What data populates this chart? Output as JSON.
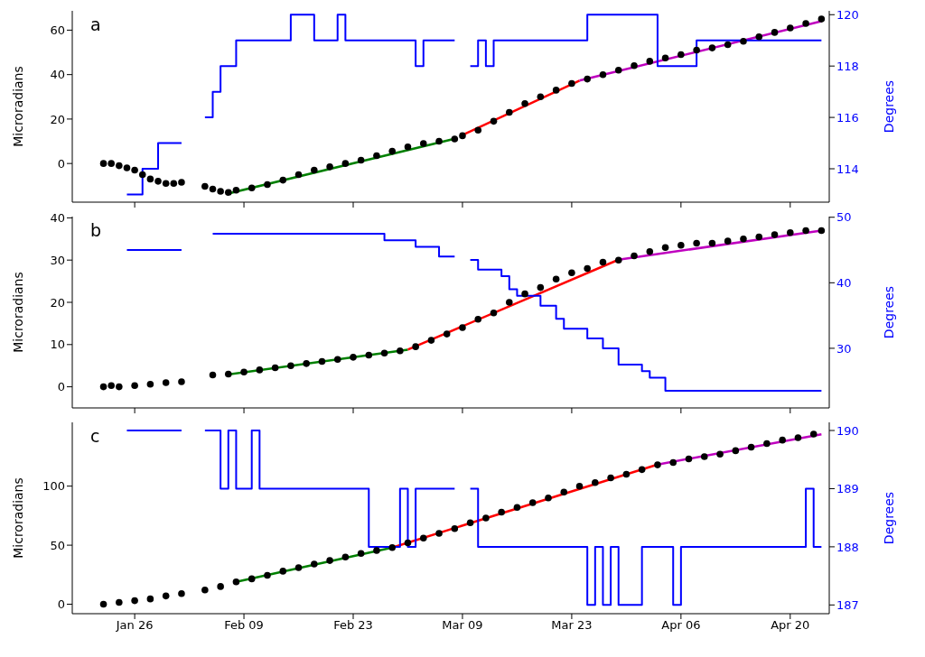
{
  "chart_data": [
    {
      "type": "scatter",
      "title": "a",
      "ylabel": "Microradians",
      "y2label": "Degrees",
      "xlim": [
        "--01-18",
        "--04-25"
      ],
      "xticks": [
        {
          "value": "--01-26",
          "label": "Jan 26"
        },
        {
          "value": "--02-09",
          "label": "Feb 09"
        },
        {
          "value": "--02-23",
          "label": "Feb 23"
        },
        {
          "value": "--03-09",
          "label": "Mar 09"
        },
        {
          "value": "--03-23",
          "label": "Mar 23"
        },
        {
          "value": "--04-06",
          "label": "Apr 06"
        },
        {
          "value": "--04-20",
          "label": "Apr 20"
        }
      ],
      "ylim": [
        -17.4,
        68.7
      ],
      "yticks": [
        0,
        20,
        40,
        60
      ],
      "y2lim": [
        112.7,
        120.15
      ],
      "y2ticks": [
        114,
        116,
        118,
        120
      ],
      "tick_labels": "y",
      "line_style": "solid",
      "series": [
        {
          "marker": "circle",
          "color": "#000000",
          "x": [
            "--01-22",
            "--01-23",
            "--01-24",
            "--01-25",
            "--01-26",
            "--01-27",
            "--01-28",
            "--01-29",
            "--01-30",
            "--01-31",
            "--02-01",
            "--02-04",
            "--02-05",
            "--02-06",
            "--02-07",
            "--02-08",
            "--02-10",
            "--02-12",
            "--02-14",
            "--02-16",
            "--02-18",
            "--02-20",
            "--02-22",
            "--02-24",
            "--02-26",
            "--02-28",
            "--03-02",
            "--03-04",
            "--03-06",
            "--03-08",
            "--03-09",
            "--03-11",
            "--03-13",
            "--03-15",
            "--03-17",
            "--03-19",
            "--03-21",
            "--03-23",
            "--03-25",
            "--03-27",
            "--03-29",
            "--03-31",
            "--04-02",
            "--04-04",
            "--04-06",
            "--04-08",
            "--04-10",
            "--04-12",
            "--04-14",
            "--04-16",
            "--04-18",
            "--04-20",
            "--04-22",
            "--04-24"
          ],
          "values": [
            0,
            0,
            -1,
            -2,
            -3,
            -5,
            -7,
            -8,
            -9,
            -9,
            -8.5,
            -10.3,
            -11.5,
            -12.5,
            -13,
            -12,
            -11,
            -9.5,
            -7.5,
            -5,
            -3,
            -1.5,
            0,
            1.5,
            3.5,
            5.5,
            7.5,
            9,
            10,
            11,
            12.5,
            15,
            19,
            23,
            27,
            30,
            33,
            36,
            38,
            40,
            42,
            44,
            46,
            47.5,
            49,
            51,
            52,
            53.5,
            55,
            57,
            59,
            61,
            63,
            65
          ]
        },
        {
          "type": "line",
          "color": "#008000",
          "x": [
            "--02-07",
            "--03-08"
          ],
          "values": [
            -13.5,
            11.1
          ]
        },
        {
          "type": "line",
          "color": "#ff0000",
          "x": [
            "--03-09",
            "--03-24"
          ],
          "values": [
            12.8,
            37.3
          ]
        },
        {
          "type": "line",
          "color": "#bf00bf",
          "x": [
            "--03-24",
            "--04-24"
          ],
          "values": [
            37.3,
            64
          ]
        },
        {
          "type": "step",
          "axis": "y2",
          "color": "#0000ff",
          "x": [
            "--01-25",
            "--01-27",
            "--01-29",
            "--02-01",
            "--02-02",
            "--02-04",
            "--02-05",
            "--02-06",
            "--02-08",
            "--02-15",
            "--02-18",
            "--02-21",
            "--02-22",
            "--03-03",
            "--03-04",
            "--03-08",
            "--03-09",
            "--03-10",
            "--03-11",
            "--03-12",
            "--03-13",
            "--03-25",
            "--04-03",
            "--04-08",
            "--04-24"
          ],
          "values": [
            113,
            114,
            115,
            115,
            null,
            116,
            117,
            118,
            119,
            120,
            119,
            120,
            119,
            118,
            119,
            119,
            null,
            118,
            119,
            118,
            119,
            120,
            118,
            119,
            119
          ]
        }
      ]
    },
    {
      "type": "scatter",
      "title": "b",
      "ylabel": "Microradians",
      "y2label": "Degrees",
      "xlim": [
        "--01-18",
        "--04-25"
      ],
      "xticks": [
        {
          "value": "--01-26",
          "label": "Jan 26"
        },
        {
          "value": "--02-09",
          "label": "Feb 09"
        },
        {
          "value": "--02-23",
          "label": "Feb 23"
        },
        {
          "value": "--03-09",
          "label": "Mar 09"
        },
        {
          "value": "--03-23",
          "label": "Mar 23"
        },
        {
          "value": "--04-06",
          "label": "Apr 06"
        },
        {
          "value": "--04-20",
          "label": "Apr 20"
        }
      ],
      "ylim": [
        -5,
        40.3
      ],
      "yticks": [
        0,
        10,
        20,
        30,
        40
      ],
      "y2lim": [
        20.9,
        50.1
      ],
      "y2ticks": [
        30,
        40,
        50
      ],
      "tick_labels": "y",
      "line_style": "solid",
      "series": [
        {
          "marker": "circle",
          "color": "#000000",
          "x": [
            "--01-22",
            "--01-23",
            "--01-24",
            "--01-26",
            "--01-28",
            "--01-30",
            "--02-01",
            "--02-05",
            "--02-07",
            "--02-09",
            "--02-11",
            "--02-13",
            "--02-15",
            "--02-17",
            "--02-19",
            "--02-21",
            "--02-23",
            "--02-25",
            "--02-27",
            "--03-01",
            "--03-03",
            "--03-05",
            "--03-07",
            "--03-09",
            "--03-11",
            "--03-13",
            "--03-15",
            "--03-17",
            "--03-19",
            "--03-21",
            "--03-23",
            "--03-25",
            "--03-27",
            "--03-29",
            "--03-31",
            "--04-02",
            "--04-04",
            "--04-06",
            "--04-08",
            "--04-10",
            "--04-12",
            "--04-14",
            "--04-16",
            "--04-18",
            "--04-20",
            "--04-22",
            "--04-24"
          ],
          "values": [
            0,
            0.3,
            0,
            0.3,
            0.6,
            1,
            1.2,
            2.8,
            3,
            3.5,
            4,
            4.5,
            5,
            5.5,
            6,
            6.5,
            7,
            7.5,
            8,
            8.5,
            9.5,
            11,
            12.5,
            14,
            16,
            17.5,
            20,
            22,
            23.5,
            25.5,
            27,
            28,
            29.5,
            30,
            31,
            32,
            33,
            33.5,
            34,
            34,
            34.5,
            35,
            35.5,
            36,
            36.5,
            37,
            37
          ]
        },
        {
          "type": "line",
          "color": "#008000",
          "x": [
            "--02-07",
            "--03-02"
          ],
          "values": [
            2.9,
            8.8
          ]
        },
        {
          "type": "line",
          "color": "#ff0000",
          "x": [
            "--03-02",
            "--03-29"
          ],
          "values": [
            8.8,
            30.1
          ]
        },
        {
          "type": "line",
          "color": "#bf00bf",
          "x": [
            "--03-29",
            "--04-24"
          ],
          "values": [
            30.1,
            37
          ]
        },
        {
          "type": "step",
          "axis": "y2",
          "color": "#0000ff",
          "x": [
            "--01-25",
            "--02-01",
            "--02-02",
            "--02-05",
            "--02-27",
            "--03-03",
            "--03-06",
            "--03-08",
            "--03-09",
            "--03-10",
            "--03-11",
            "--03-14",
            "--03-15",
            "--03-16",
            "--03-19",
            "--03-21",
            "--03-22",
            "--03-25",
            "--03-27",
            "--03-29",
            "--04-01",
            "--04-02",
            "--04-04",
            "--04-24"
          ],
          "values": [
            45,
            45,
            null,
            47.5,
            46.5,
            45.5,
            44,
            44,
            null,
            43.5,
            42,
            41,
            39,
            38,
            36.5,
            34.5,
            33,
            31.5,
            30,
            27.5,
            26.5,
            25.5,
            23.5,
            23.5
          ]
        }
      ]
    },
    {
      "type": "scatter",
      "title": "c",
      "ylabel": "Microradians",
      "y2label": "Degrees",
      "xlim": [
        "--01-18",
        "--04-25"
      ],
      "xticks": [
        {
          "value": "--01-26",
          "label": "Jan 26"
        },
        {
          "value": "--02-09",
          "label": "Feb 09"
        },
        {
          "value": "--02-23",
          "label": "Feb 23"
        },
        {
          "value": "--03-09",
          "label": "Mar 09"
        },
        {
          "value": "--03-23",
          "label": "Mar 23"
        },
        {
          "value": "--04-06",
          "label": "Apr 06"
        },
        {
          "value": "--04-20",
          "label": "Apr 20"
        }
      ],
      "ylim": [
        -8,
        154
      ],
      "yticks": [
        0,
        50,
        100
      ],
      "y2lim": [
        186.85,
        190.14
      ],
      "y2ticks": [
        187,
        188,
        189,
        190
      ],
      "line_style": "solid",
      "series": [
        {
          "marker": "circle",
          "color": "#000000",
          "x": [
            "--01-22",
            "--01-24",
            "--01-26",
            "--01-28",
            "--01-30",
            "--02-01",
            "--02-04",
            "--02-06",
            "--02-08",
            "--02-10",
            "--02-12",
            "--02-14",
            "--02-16",
            "--02-18",
            "--02-20",
            "--02-22",
            "--02-24",
            "--02-26",
            "--02-28",
            "--03-02",
            "--03-04",
            "--03-06",
            "--03-08",
            "--03-10",
            "--03-12",
            "--03-14",
            "--03-16",
            "--03-18",
            "--03-20",
            "--03-22",
            "--03-24",
            "--03-26",
            "--03-28",
            "--03-30",
            "--04-01",
            "--04-03",
            "--04-05",
            "--04-07",
            "--04-09",
            "--04-11",
            "--04-13",
            "--04-15",
            "--04-17",
            "--04-19",
            "--04-21",
            "--04-23"
          ],
          "values": [
            0,
            1.5,
            3,
            4.5,
            7,
            9,
            12,
            15,
            19,
            21.5,
            24.5,
            28,
            31,
            34,
            37,
            40,
            43,
            45.5,
            48,
            52,
            56,
            60,
            64,
            69,
            73,
            78,
            82,
            86,
            90,
            95,
            100,
            103,
            107,
            110,
            114,
            118,
            120,
            123,
            125,
            127,
            130,
            133,
            136,
            139,
            141,
            144
          ]
        },
        {
          "type": "line",
          "color": "#008000",
          "x": [
            "--02-08",
            "--02-28"
          ],
          "values": [
            19,
            48
          ]
        },
        {
          "type": "line",
          "color": "#ff0000",
          "x": [
            "--02-28",
            "--04-03"
          ],
          "values": [
            48,
            118.3
          ]
        },
        {
          "type": "line",
          "color": "#bf00bf",
          "x": [
            "--04-03",
            "--04-24"
          ],
          "values": [
            118.3,
            143.8
          ]
        },
        {
          "type": "step",
          "axis": "y2",
          "color": "#0000ff",
          "x": [
            "--01-25",
            "--02-01",
            "--02-02",
            "--02-04",
            "--02-06",
            "--02-07",
            "--02-08",
            "--02-10",
            "--02-11",
            "--02-25",
            "--03-01",
            "--03-02",
            "--03-03",
            "--03-08",
            "--03-09",
            "--03-10",
            "--03-11",
            "--03-25",
            "--03-26",
            "--03-27",
            "--03-28",
            "--03-29",
            "--04-01",
            "--04-05",
            "--04-06",
            "--04-22",
            "--04-23",
            "--04-24"
          ],
          "values": [
            190,
            190,
            null,
            190,
            189,
            190,
            189,
            190,
            189,
            188,
            189,
            188,
            189,
            189,
            null,
            189,
            188,
            187,
            188,
            187,
            188,
            187,
            188,
            187,
            188,
            189,
            188,
            188
          ]
        }
      ]
    }
  ]
}
